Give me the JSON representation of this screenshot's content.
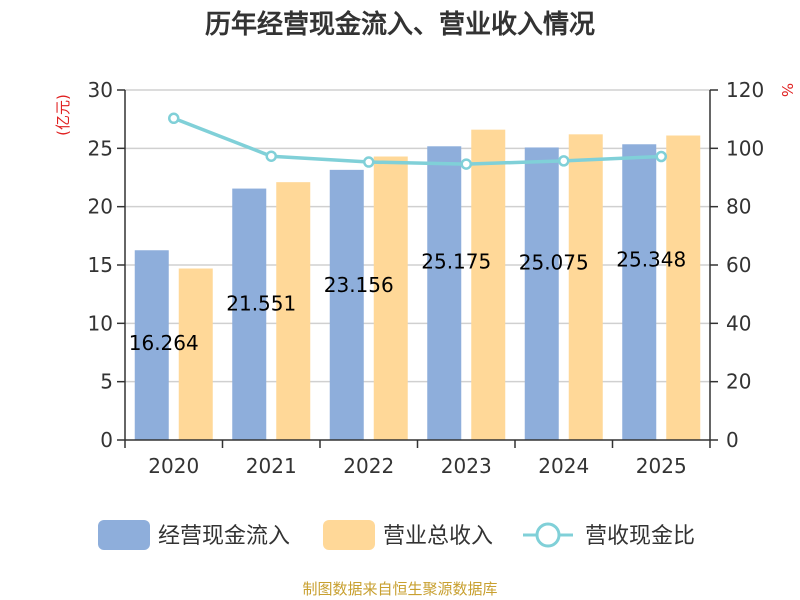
{
  "chart_data": {
    "type": "bar",
    "title": "历年经营现金流入、营业收入情况",
    "categories": [
      "2020",
      "2021",
      "2022",
      "2023",
      "2024",
      "2025"
    ],
    "left_axis": {
      "unit_label": "(亿元)",
      "range": [
        0,
        30
      ],
      "ticks": [
        0,
        5,
        10,
        15,
        20,
        25,
        30
      ]
    },
    "right_axis": {
      "unit_label": "%",
      "range": [
        0,
        120
      ],
      "ticks": [
        0,
        20,
        40,
        60,
        80,
        100,
        120
      ]
    },
    "grid": true,
    "legend_position": "bottom",
    "series": [
      {
        "name": "经营现金流入",
        "kind": "bar",
        "axis": "left",
        "color": "#8EAEDB",
        "values": [
          16.264,
          21.551,
          23.156,
          25.175,
          25.075,
          25.348
        ],
        "data_labels": [
          "16.264",
          "21.551",
          "23.156",
          "25.175",
          "25.075",
          "25.348"
        ]
      },
      {
        "name": "营业总收入",
        "kind": "bar",
        "axis": "left",
        "color": "#FFD898",
        "values": [
          14.7,
          22.1,
          24.3,
          26.6,
          26.2,
          26.1
        ]
      },
      {
        "name": "营收现金比",
        "kind": "line",
        "axis": "right",
        "color": "#80D0D8",
        "values": [
          110.3,
          97.3,
          95.3,
          94.6,
          95.7,
          97.2
        ]
      }
    ],
    "label_color": "#E02020"
  },
  "source": {
    "text": "制图数据来自恒生聚源数据库",
    "color": "#C8A030"
  }
}
